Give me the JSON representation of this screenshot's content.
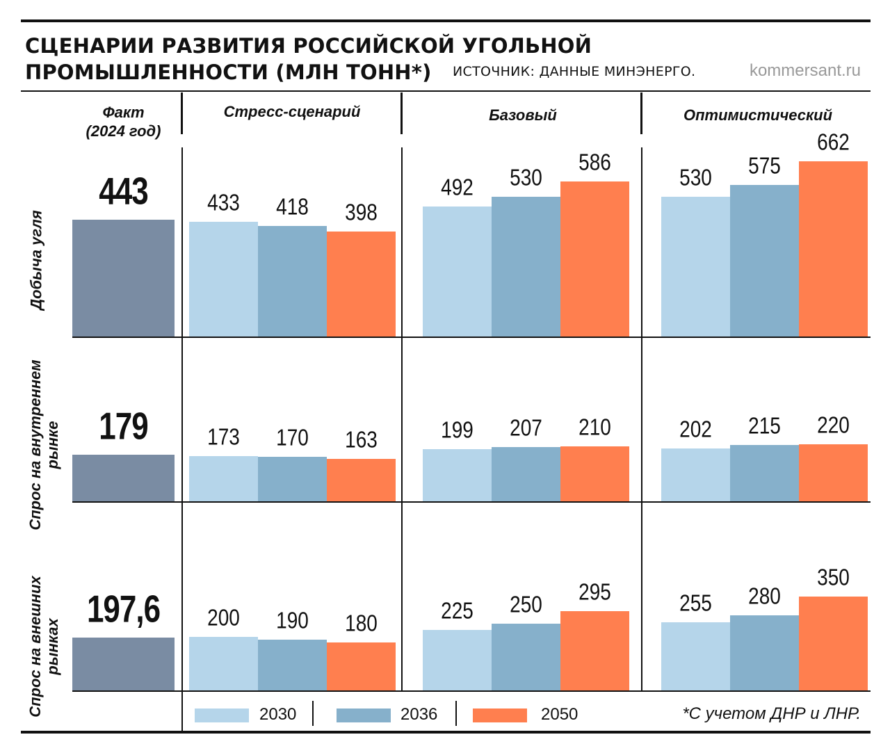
{
  "header": {
    "title_line1": "СЦЕНАРИИ РАЗВИТИЯ РОССИЙСКОЙ УГОЛЬНОЙ",
    "title_line2": "ПРОМЫШЛЕННОСТИ (МЛН ТОНН*)",
    "source": "ИСТОЧНИК: ДАННЫЕ МИНЭНЕРГО.",
    "brand": "kommersant.ru"
  },
  "columns": {
    "fact_line1": "Факт",
    "fact_line2": "(2024 год)",
    "stress": "Стресс-сценарий",
    "base": "Базовый",
    "optimistic": "Оптимистический"
  },
  "rows": {
    "production": "Добыча угля",
    "domestic_line1": "Спрос на внутреннем",
    "domestic_line2": "рынке",
    "external_line1": "Спрос на внешних",
    "external_line2": "рынках"
  },
  "legend": {
    "y2030": "2030",
    "y2036": "2036",
    "y2050": "2050",
    "footnote": "*С учетом ДНР и ЛНР."
  },
  "colors": {
    "fact": "#7a8ca3",
    "y2030": "#b5d5ea",
    "y2036": "#86b0cb",
    "y2050": "#ff7f4f"
  },
  "chart_data": {
    "type": "bar",
    "title": "Сценарии развития российской угольной промышленности (млн тонн*)",
    "unit": "млн тонн",
    "scenarios": [
      "Стресс-сценарий",
      "Базовый",
      "Оптимистический"
    ],
    "years": [
      "2030",
      "2036",
      "2050"
    ],
    "metrics": [
      {
        "name": "Добыча угля",
        "fact_2024": 443,
        "fact_label": "443",
        "scenarios": [
          {
            "name": "Стресс-сценарий",
            "values": [
              433,
              418,
              398
            ],
            "labels": [
              "433",
              "418",
              "398"
            ]
          },
          {
            "name": "Базовый",
            "values": [
              492,
              530,
              586
            ],
            "labels": [
              "492",
              "530",
              "586"
            ]
          },
          {
            "name": "Оптимистический",
            "values": [
              530,
              575,
              662
            ],
            "labels": [
              "530",
              "575",
              "662"
            ]
          }
        ]
      },
      {
        "name": "Спрос на внутреннем рынке",
        "fact_2024": 179,
        "fact_label": "179",
        "scenarios": [
          {
            "name": "Стресс-сценарий",
            "values": [
              173,
              170,
              163
            ],
            "labels": [
              "173",
              "170",
              "163"
            ]
          },
          {
            "name": "Базовый",
            "values": [
              199,
              207,
              210
            ],
            "labels": [
              "199",
              "207",
              "210"
            ]
          },
          {
            "name": "Оптимистический",
            "values": [
              202,
              215,
              220
            ],
            "labels": [
              "202",
              "215",
              "220"
            ]
          }
        ]
      },
      {
        "name": "Спрос на внешних рынках",
        "fact_2024": 197.6,
        "fact_label": "197,6",
        "scenarios": [
          {
            "name": "Стресс-сценарий",
            "values": [
              200,
              190,
              180
            ],
            "labels": [
              "200",
              "190",
              "180"
            ]
          },
          {
            "name": "Базовый",
            "values": [
              225,
              250,
              295
            ],
            "labels": [
              "225",
              "250",
              "295"
            ]
          },
          {
            "name": "Оптимистический",
            "values": [
              255,
              280,
              350
            ],
            "labels": [
              "255",
              "280",
              "350"
            ]
          }
        ]
      }
    ]
  }
}
